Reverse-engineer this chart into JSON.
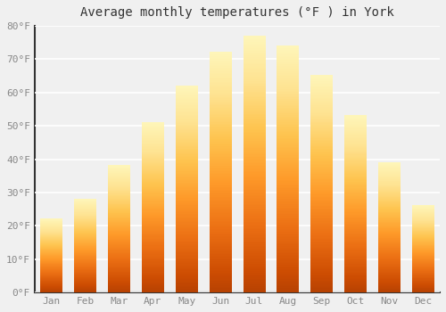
{
  "title": "Average monthly temperatures (°F ) in York",
  "months": [
    "Jan",
    "Feb",
    "Mar",
    "Apr",
    "May",
    "Jun",
    "Jul",
    "Aug",
    "Sep",
    "Oct",
    "Nov",
    "Dec"
  ],
  "values": [
    22,
    28,
    38,
    51,
    62,
    72,
    77,
    74,
    65,
    53,
    39,
    26
  ],
  "bar_color": "#FFA500",
  "bar_color_light": "#FFD040",
  "bar_color_dark": "#F08000",
  "ylim": [
    0,
    80
  ],
  "yticks": [
    0,
    10,
    20,
    30,
    40,
    50,
    60,
    70,
    80
  ],
  "ytick_labels": [
    "0°F",
    "10°F",
    "20°F",
    "30°F",
    "40°F",
    "50°F",
    "60°F",
    "70°F",
    "80°F"
  ],
  "background_color": "#f0f0f0",
  "grid_color": "#ffffff",
  "title_fontsize": 10,
  "tick_fontsize": 8,
  "bar_width": 0.65,
  "tick_color": "#888888",
  "spine_color": "#333333"
}
